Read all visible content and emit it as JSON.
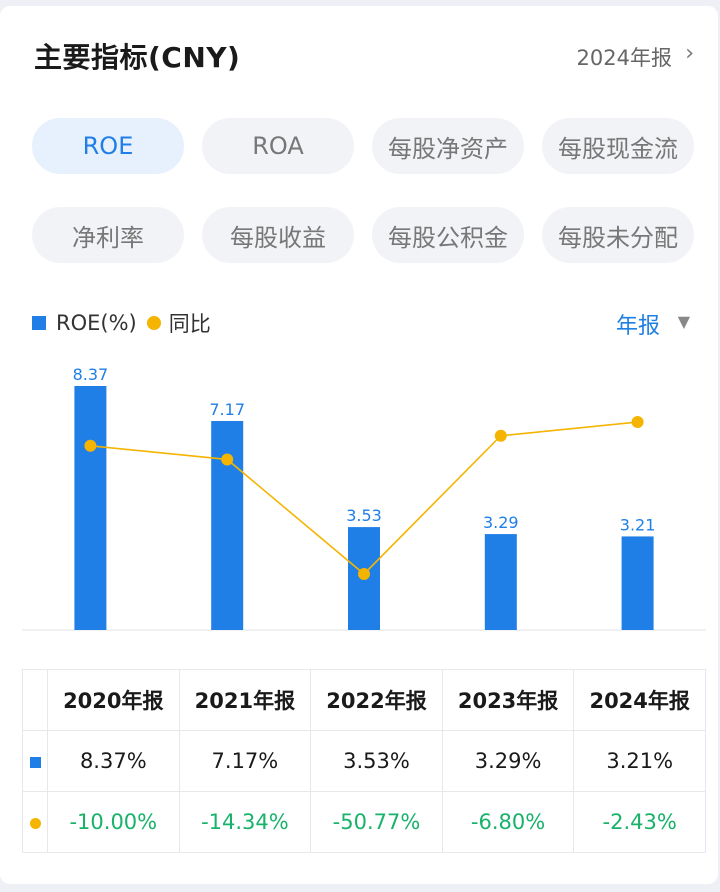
{
  "header": {
    "title": "主要指标(CNY)",
    "period": "2024年报",
    "chevron": "›"
  },
  "tabs": [
    {
      "label": "ROE",
      "active": true
    },
    {
      "label": "ROA",
      "active": false
    },
    {
      "label": "每股净资产",
      "active": false
    },
    {
      "label": "每股现金流",
      "active": false
    },
    {
      "label": "净利率",
      "active": false
    },
    {
      "label": "每股收益",
      "active": false
    },
    {
      "label": "每股公积金",
      "active": false
    },
    {
      "label": "每股未分配",
      "active": false
    }
  ],
  "legend": {
    "bar_label": "ROE(%)",
    "line_label": "同比"
  },
  "period_select": {
    "label": "年报",
    "arrow": "▼"
  },
  "colors": {
    "bar": "#1f7fe6",
    "line": "#f5b400",
    "negative": "#18b26b",
    "active_tab_bg": "#e7f0fd"
  },
  "chart_data": {
    "type": "bar",
    "categories": [
      "2020年报",
      "2021年报",
      "2022年报",
      "2023年报",
      "2024年报"
    ],
    "series": [
      {
        "name": "ROE(%)",
        "type": "bar",
        "values": [
          8.37,
          7.17,
          3.53,
          3.29,
          3.21
        ],
        "data_labels": [
          "8.37",
          "7.17",
          "3.53",
          "3.29",
          "3.21"
        ]
      },
      {
        "name": "同比",
        "type": "line",
        "values": [
          -10.0,
          -14.34,
          -50.77,
          -6.8,
          -2.43
        ]
      }
    ],
    "grid": false
  },
  "table": {
    "headers": [
      "2020年报",
      "2021年报",
      "2022年报",
      "2023年报",
      "2024年报"
    ],
    "roe_row": [
      "8.37%",
      "7.17%",
      "3.53%",
      "3.29%",
      "3.21%"
    ],
    "yoy_row": [
      "-10.00%",
      "-14.34%",
      "-50.77%",
      "-6.80%",
      "-2.43%"
    ]
  }
}
